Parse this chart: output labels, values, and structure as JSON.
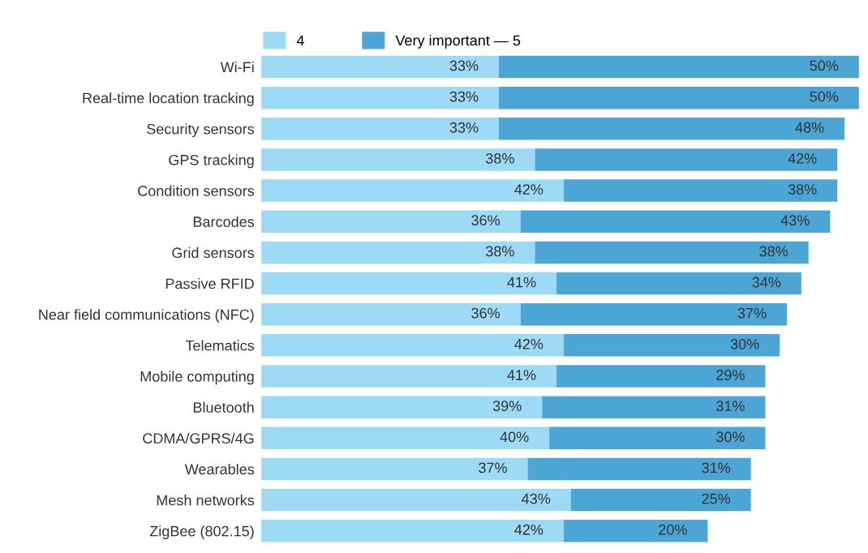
{
  "chart_data": {
    "type": "bar",
    "orientation": "horizontal",
    "stacked": true,
    "legend": "top left",
    "grid": false,
    "categories": [
      "Wi-Fi",
      "Real-time location tracking",
      "Security sensors",
      "GPS tracking",
      "Condition sensors",
      "Barcodes",
      "Grid sensors",
      "Passive RFID",
      "Near field communications (NFC)",
      "Telematics",
      "Mobile computing",
      "Bluetooth",
      "CDMA/GPRS/4G",
      "Wearables",
      "Mesh networks",
      "ZigBee (802.15)"
    ],
    "series": [
      {
        "name": "4",
        "color": "#9ddaf5",
        "values": [
          33,
          33,
          33,
          38,
          42,
          36,
          38,
          41,
          36,
          42,
          41,
          39,
          40,
          37,
          43,
          42
        ],
        "value_labels": [
          "33%",
          "33%",
          "33%",
          "38%",
          "42%",
          "36%",
          "38%",
          "41%",
          "36%",
          "42%",
          "41%",
          "39%",
          "40%",
          "37%",
          "43%",
          "42%"
        ]
      },
      {
        "name": "Very important — 5",
        "color": "#4ba6d5",
        "values": [
          50,
          50,
          48,
          42,
          38,
          43,
          38,
          34,
          37,
          30,
          29,
          31,
          30,
          31,
          25,
          20
        ],
        "value_labels": [
          "50%",
          "50%",
          "48%",
          "42%",
          "38%",
          "43%",
          "38%",
          "34%",
          "37%",
          "30%",
          "29%",
          "31%",
          "30%",
          "31%",
          "25%",
          "20%"
        ]
      }
    ]
  }
}
